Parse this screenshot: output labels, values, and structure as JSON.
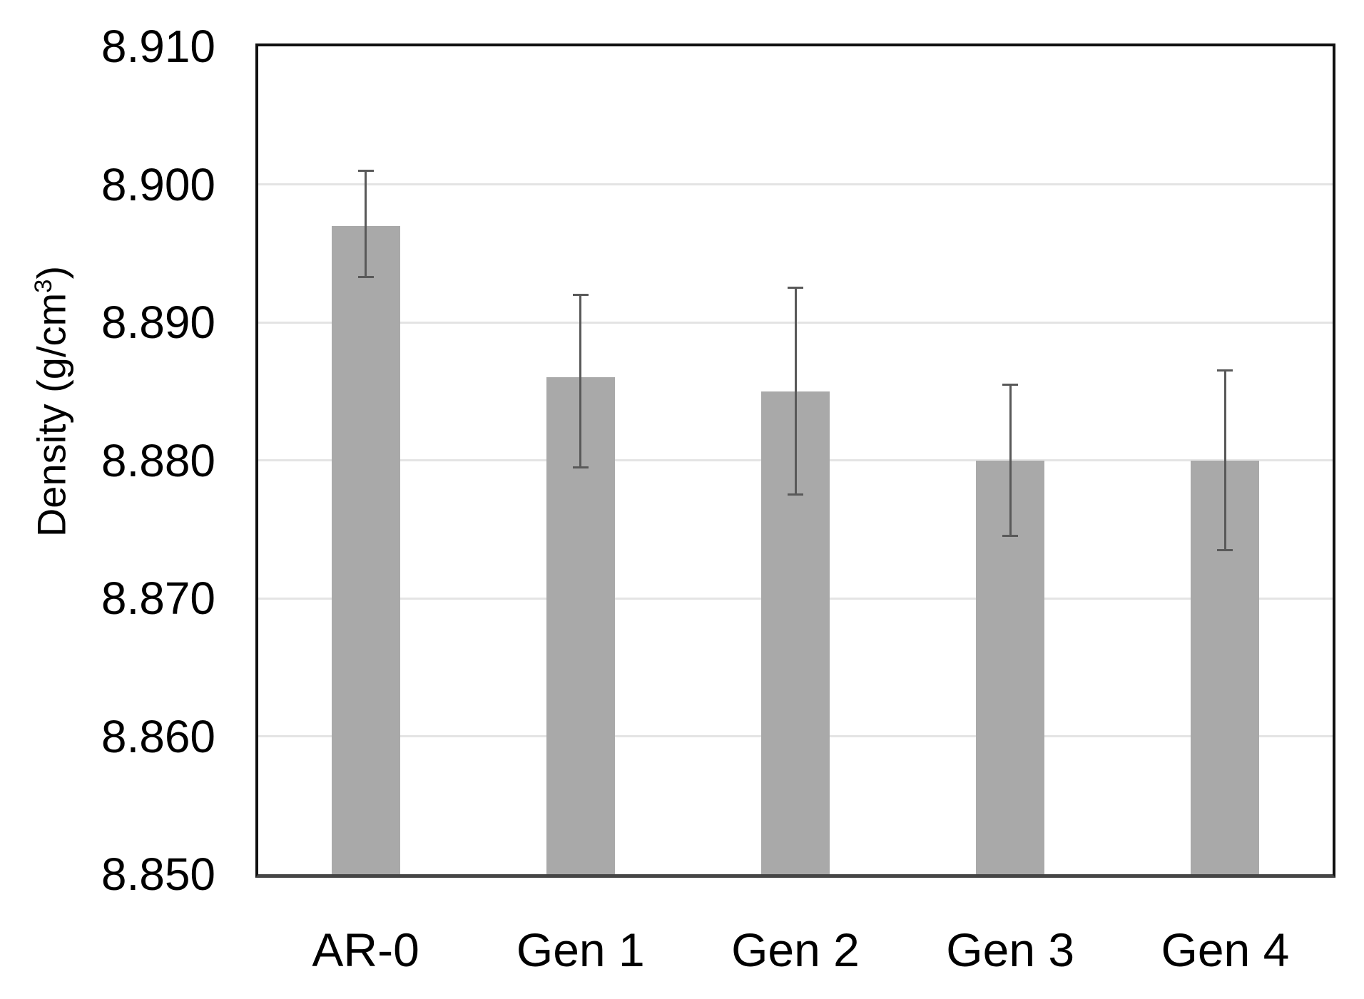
{
  "chart_data": {
    "type": "bar",
    "title": "",
    "xlabel": "",
    "ylabel": "Density (g/cm³)",
    "ylabel_parts": {
      "prefix": "Density (g/cm",
      "superscript": "3",
      "suffix": ")"
    },
    "categories": [
      "AR-0",
      "Gen 1",
      "Gen 2",
      "Gen 3",
      "Gen 4"
    ],
    "values": [
      8.897,
      8.886,
      8.885,
      8.88,
      8.88
    ],
    "error_top": [
      8.901,
      8.892,
      8.8925,
      8.8855,
      8.8865
    ],
    "error_bottom": [
      8.8933,
      8.8795,
      8.8775,
      8.8745,
      8.8735
    ],
    "ylim": [
      8.85,
      8.91
    ],
    "ytick_step": 0.01,
    "yticks": [
      "8.850",
      "8.860",
      "8.870",
      "8.880",
      "8.890",
      "8.900",
      "8.910"
    ],
    "grid": "horizontal",
    "legend": "none",
    "bar_color": "#a9a9a9",
    "error_bar_color": "#595959",
    "gridline_color": "#e4e4e4",
    "plot_border_color": "#101010",
    "axis_line_color": "#454545",
    "text_color": "#000000",
    "background_color": "#ffffff"
  }
}
